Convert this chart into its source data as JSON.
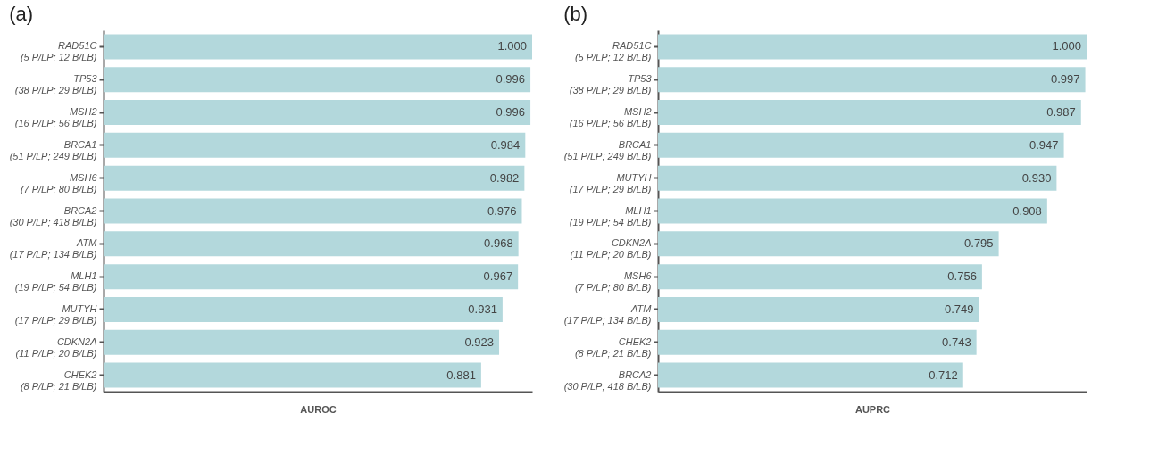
{
  "chart_data": [
    {
      "type": "bar",
      "title": "(a)",
      "orientation": "horizontal",
      "xlabel": "AUROC",
      "xlim": [
        0,
        1
      ],
      "tick_labels": "y",
      "color": "#b3d8dc",
      "categories": [
        "RAD51C\n(5 P/LP; 12 B/LB)",
        "TP53\n(38 P/LP; 29 B/LB)",
        "MSH2\n(16 P/LP; 56 B/LB)",
        "BRCA1\n(51 P/LP; 249 B/LB)",
        "MSH6\n(7 P/LP; 80 B/LB)",
        "BRCA2\n(30 P/LP; 418 B/LB)",
        "ATM\n(17 P/LP; 134 B/LB)",
        "MLH1\n(19 P/LP; 54 B/LB)",
        "MUTYH\n(17 P/LP; 29 B/LB)",
        "CDKN2A\n(11 P/LP; 20 B/LB)",
        "CHEK2\n(8 P/LP; 21 B/LB)"
      ],
      "values": [
        1.0,
        0.996,
        0.996,
        0.984,
        0.982,
        0.976,
        0.968,
        0.967,
        0.931,
        0.923,
        0.881
      ],
      "value_labels": [
        "1.000",
        "0.996",
        "0.996",
        "0.984",
        "0.982",
        "0.976",
        "0.968",
        "0.967",
        "0.931",
        "0.923",
        "0.881"
      ]
    },
    {
      "type": "bar",
      "title": "(b)",
      "orientation": "horizontal",
      "xlabel": "AUPRC",
      "xlim": [
        0,
        1
      ],
      "tick_labels": "y",
      "color": "#b3d8dc",
      "categories": [
        "RAD51C\n(5 P/LP; 12 B/LB)",
        "TP53\n(38 P/LP; 29 B/LB)",
        "MSH2\n(16 P/LP; 56 B/LB)",
        "BRCA1\n(51 P/LP; 249 B/LB)",
        "MUTYH\n(17 P/LP; 29 B/LB)",
        "MLH1\n(19 P/LP; 54 B/LB)",
        "CDKN2A\n(11 P/LP; 20 B/LB)",
        "MSH6\n(7 P/LP; 80 B/LB)",
        "ATM\n(17 P/LP; 134 B/LB)",
        "CHEK2\n(8 P/LP; 21 B/LB)",
        "BRCA2\n(30 P/LP; 418 B/LB)"
      ],
      "values": [
        1.0,
        0.997,
        0.987,
        0.947,
        0.93,
        0.908,
        0.795,
        0.756,
        0.749,
        0.743,
        0.712
      ],
      "value_labels": [
        "1.000",
        "0.997",
        "0.987",
        "0.947",
        "0.930",
        "0.908",
        "0.795",
        "0.756",
        "0.749",
        "0.743",
        "0.712"
      ]
    }
  ]
}
